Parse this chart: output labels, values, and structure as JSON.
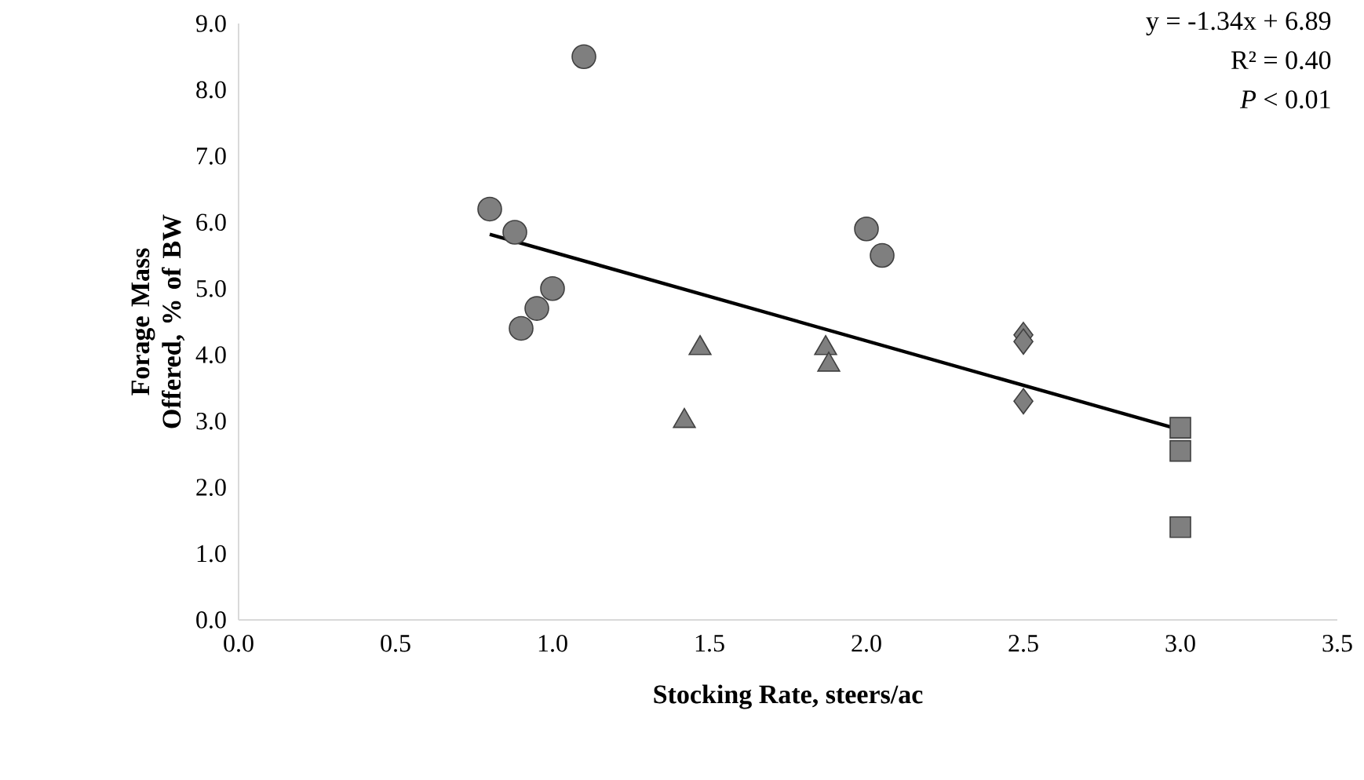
{
  "chart_data": {
    "type": "scatter",
    "xlabel": "Stocking Rate, steers/ac",
    "ylabel": "Forage Mass Offered, % of BW",
    "xlim": [
      0,
      3.5
    ],
    "ylim": [
      0,
      9
    ],
    "xticks": [
      {
        "value": 0,
        "label": "0.0"
      },
      {
        "value": 0.5,
        "label": "0.5"
      },
      {
        "value": 1,
        "label": "1.0"
      },
      {
        "value": 1.5,
        "label": "1.5"
      },
      {
        "value": 2,
        "label": "2.0"
      },
      {
        "value": 2.5,
        "label": "2.5"
      },
      {
        "value": 3,
        "label": "3.0"
      },
      {
        "value": 3.5,
        "label": "3.5"
      }
    ],
    "yticks": [
      {
        "value": 0,
        "label": "0.0"
      },
      {
        "value": 1,
        "label": "1.0"
      },
      {
        "value": 2,
        "label": "2.0"
      },
      {
        "value": 3,
        "label": "3.0"
      },
      {
        "value": 4,
        "label": "4.0"
      },
      {
        "value": 5,
        "label": "5.0"
      },
      {
        "value": 6,
        "label": "6.0"
      },
      {
        "value": 7,
        "label": "7.0"
      },
      {
        "value": 8,
        "label": "8.0"
      },
      {
        "value": 9,
        "label": "9.0"
      }
    ],
    "grid": false,
    "legend": false,
    "annotations": [
      "y = -1.34x + 6.89",
      "R² = 0.40",
      "*P* < 0.01"
    ],
    "series": [
      {
        "marker": "circle",
        "color": "#7f7f7f",
        "x": [
          0.8,
          0.88,
          0.9,
          0.95,
          1.0,
          1.1,
          2.0,
          2.05
        ],
        "values": [
          6.2,
          5.85,
          4.4,
          4.7,
          5.0,
          8.5,
          5.9,
          5.5
        ]
      },
      {
        "marker": "triangle",
        "color": "#7f7f7f",
        "x": [
          1.42,
          1.47,
          1.87,
          1.88
        ],
        "values": [
          3.0,
          4.1,
          4.1,
          3.85
        ]
      },
      {
        "marker": "diamond",
        "color": "#7f7f7f",
        "x": [
          2.5,
          2.5,
          2.5
        ],
        "values": [
          4.3,
          4.2,
          3.3
        ]
      },
      {
        "marker": "square",
        "color": "#7f7f7f",
        "x": [
          3.0,
          3.0,
          3.0
        ],
        "values": [
          2.9,
          2.55,
          1.4
        ]
      },
      {
        "type": "line",
        "marker": "none",
        "line_style": "solid",
        "color": "#000000",
        "x": [
          0.8,
          3.0
        ],
        "values": [
          5.82,
          2.87
        ]
      }
    ]
  }
}
